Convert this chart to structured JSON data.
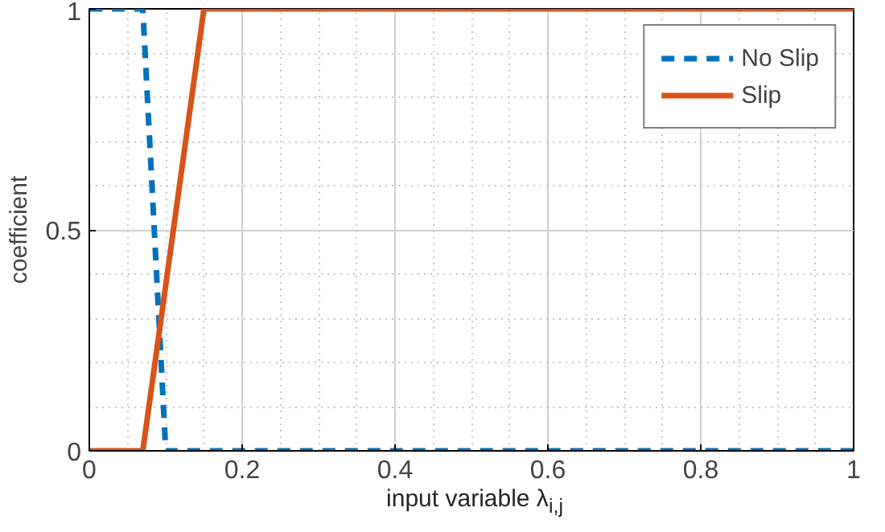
{
  "chart_data": {
    "type": "line",
    "xlabel": "input variable λ$_{i,j}$",
    "ylabel": "coefficient",
    "xlim": [
      0,
      1
    ],
    "ylim": [
      0,
      1
    ],
    "xticks": [
      0,
      0.2,
      0.4,
      0.6,
      0.8,
      1
    ],
    "yticks": [
      0,
      0.5,
      1
    ],
    "grid": true,
    "legend": "top right",
    "series": [
      {
        "name": "No Slip",
        "color": "#0072bd",
        "line_style": "dashed",
        "x": [
          0,
          0.07,
          0.1,
          1
        ],
        "values": [
          1,
          1,
          0,
          0
        ]
      },
      {
        "name": "Slip",
        "color": "#d95319",
        "line_style": "solid",
        "x": [
          0,
          0.07,
          0.15,
          1
        ],
        "values": [
          0,
          0,
          1,
          1
        ]
      }
    ]
  }
}
